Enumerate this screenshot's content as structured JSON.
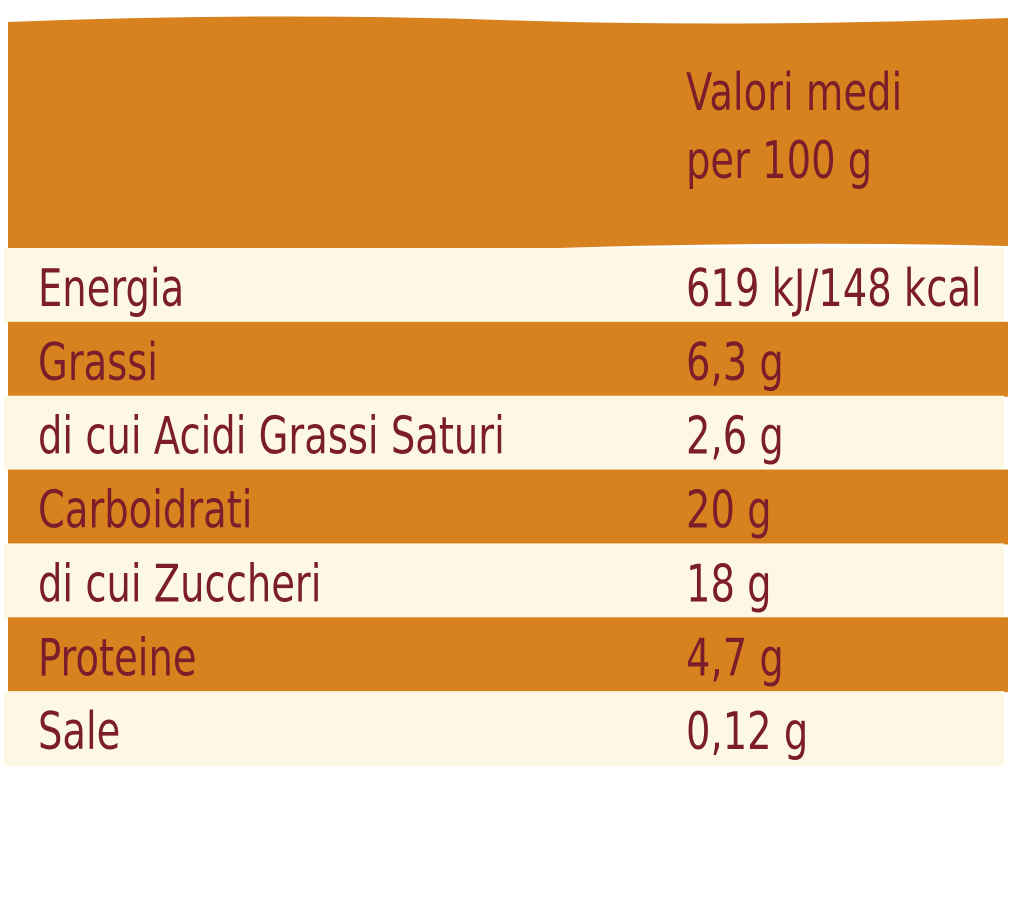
{
  "header": {
    "lines": [
      "Valori medi",
      "per 100 g"
    ]
  },
  "table": {
    "rows": [
      [
        "Energia",
        "619 kJ/148 kcal"
      ],
      [
        "Grassi",
        "6,3 g"
      ],
      [
        "di cui Acidi Grassi Saturi",
        "2,6 g"
      ],
      [
        "Carboidrati",
        "20 g"
      ],
      [
        "di cui Zuccheri",
        "18 g"
      ],
      [
        "Proteine",
        "4,7 g"
      ],
      [
        "Sale",
        "0,12 g"
      ]
    ]
  }
}
